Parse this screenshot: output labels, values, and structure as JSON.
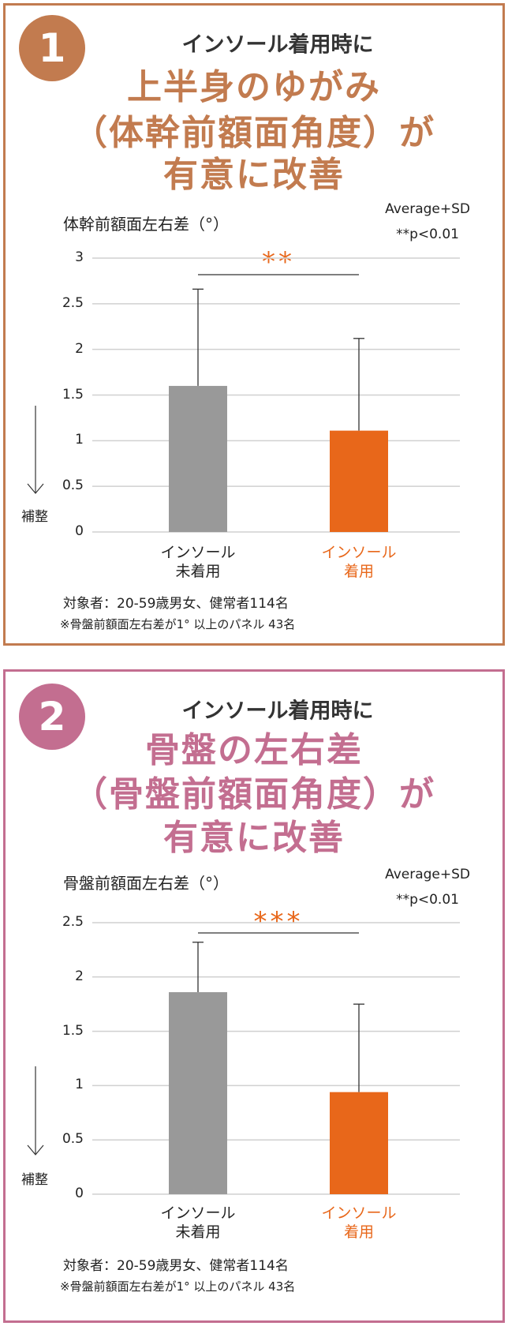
{
  "colors": {
    "panel1": "#c27b4f",
    "panel2": "#c36e90",
    "gray_bar": "#999999",
    "orange_bar": "#e8671a",
    "grid": "#d0d0d0"
  },
  "panels": [
    {
      "number": "1",
      "subtitle": "インソール着用時に",
      "headline": [
        "上半身のゆがみ",
        "（体幹前額面角度）が",
        "有意に改善"
      ],
      "footnote1": "対象者：20-59歳男女、健常者114名",
      "footnote2": "※骨盤前額面左右差が1° 以上のパネル 43名"
    },
    {
      "number": "2",
      "subtitle": "インソール着用時に",
      "headline": [
        "骨盤の左右差",
        "（骨盤前額面角度）が",
        "有意に改善"
      ],
      "footnote1": "対象者：20-59歳男女、健常者114名",
      "footnote2": "※骨盤前額面左右差が1° 以上のパネル 43名"
    }
  ],
  "chart_data": [
    {
      "type": "bar",
      "title": "体幹前額面左右差（°）",
      "legend": [
        "Average+SD",
        "**p<0.01"
      ],
      "direction_label": "補整",
      "categories": [
        [
          "インソール",
          "未着用"
        ],
        [
          "インソール",
          "着用"
        ]
      ],
      "values": [
        1.6,
        1.11
      ],
      "sd_top": [
        2.66,
        2.12
      ],
      "ylim": [
        0,
        3
      ],
      "yticks": [
        "0",
        "0.5",
        "1",
        "1.5",
        "2",
        "2.5",
        "3"
      ],
      "significance": "**",
      "grid": true
    },
    {
      "type": "bar",
      "title": "骨盤前額面左右差（°）",
      "legend": [
        "Average+SD",
        "**p<0.01"
      ],
      "direction_label": "補整",
      "categories": [
        [
          "インソール",
          "未着用"
        ],
        [
          "インソール",
          "着用"
        ]
      ],
      "values": [
        1.86,
        0.94
      ],
      "sd_top": [
        2.32,
        1.75
      ],
      "ylim": [
        0,
        2.5
      ],
      "yticks": [
        "0",
        "0.5",
        "1",
        "1.5",
        "2",
        "2.5"
      ],
      "significance": "***",
      "grid": true
    }
  ]
}
